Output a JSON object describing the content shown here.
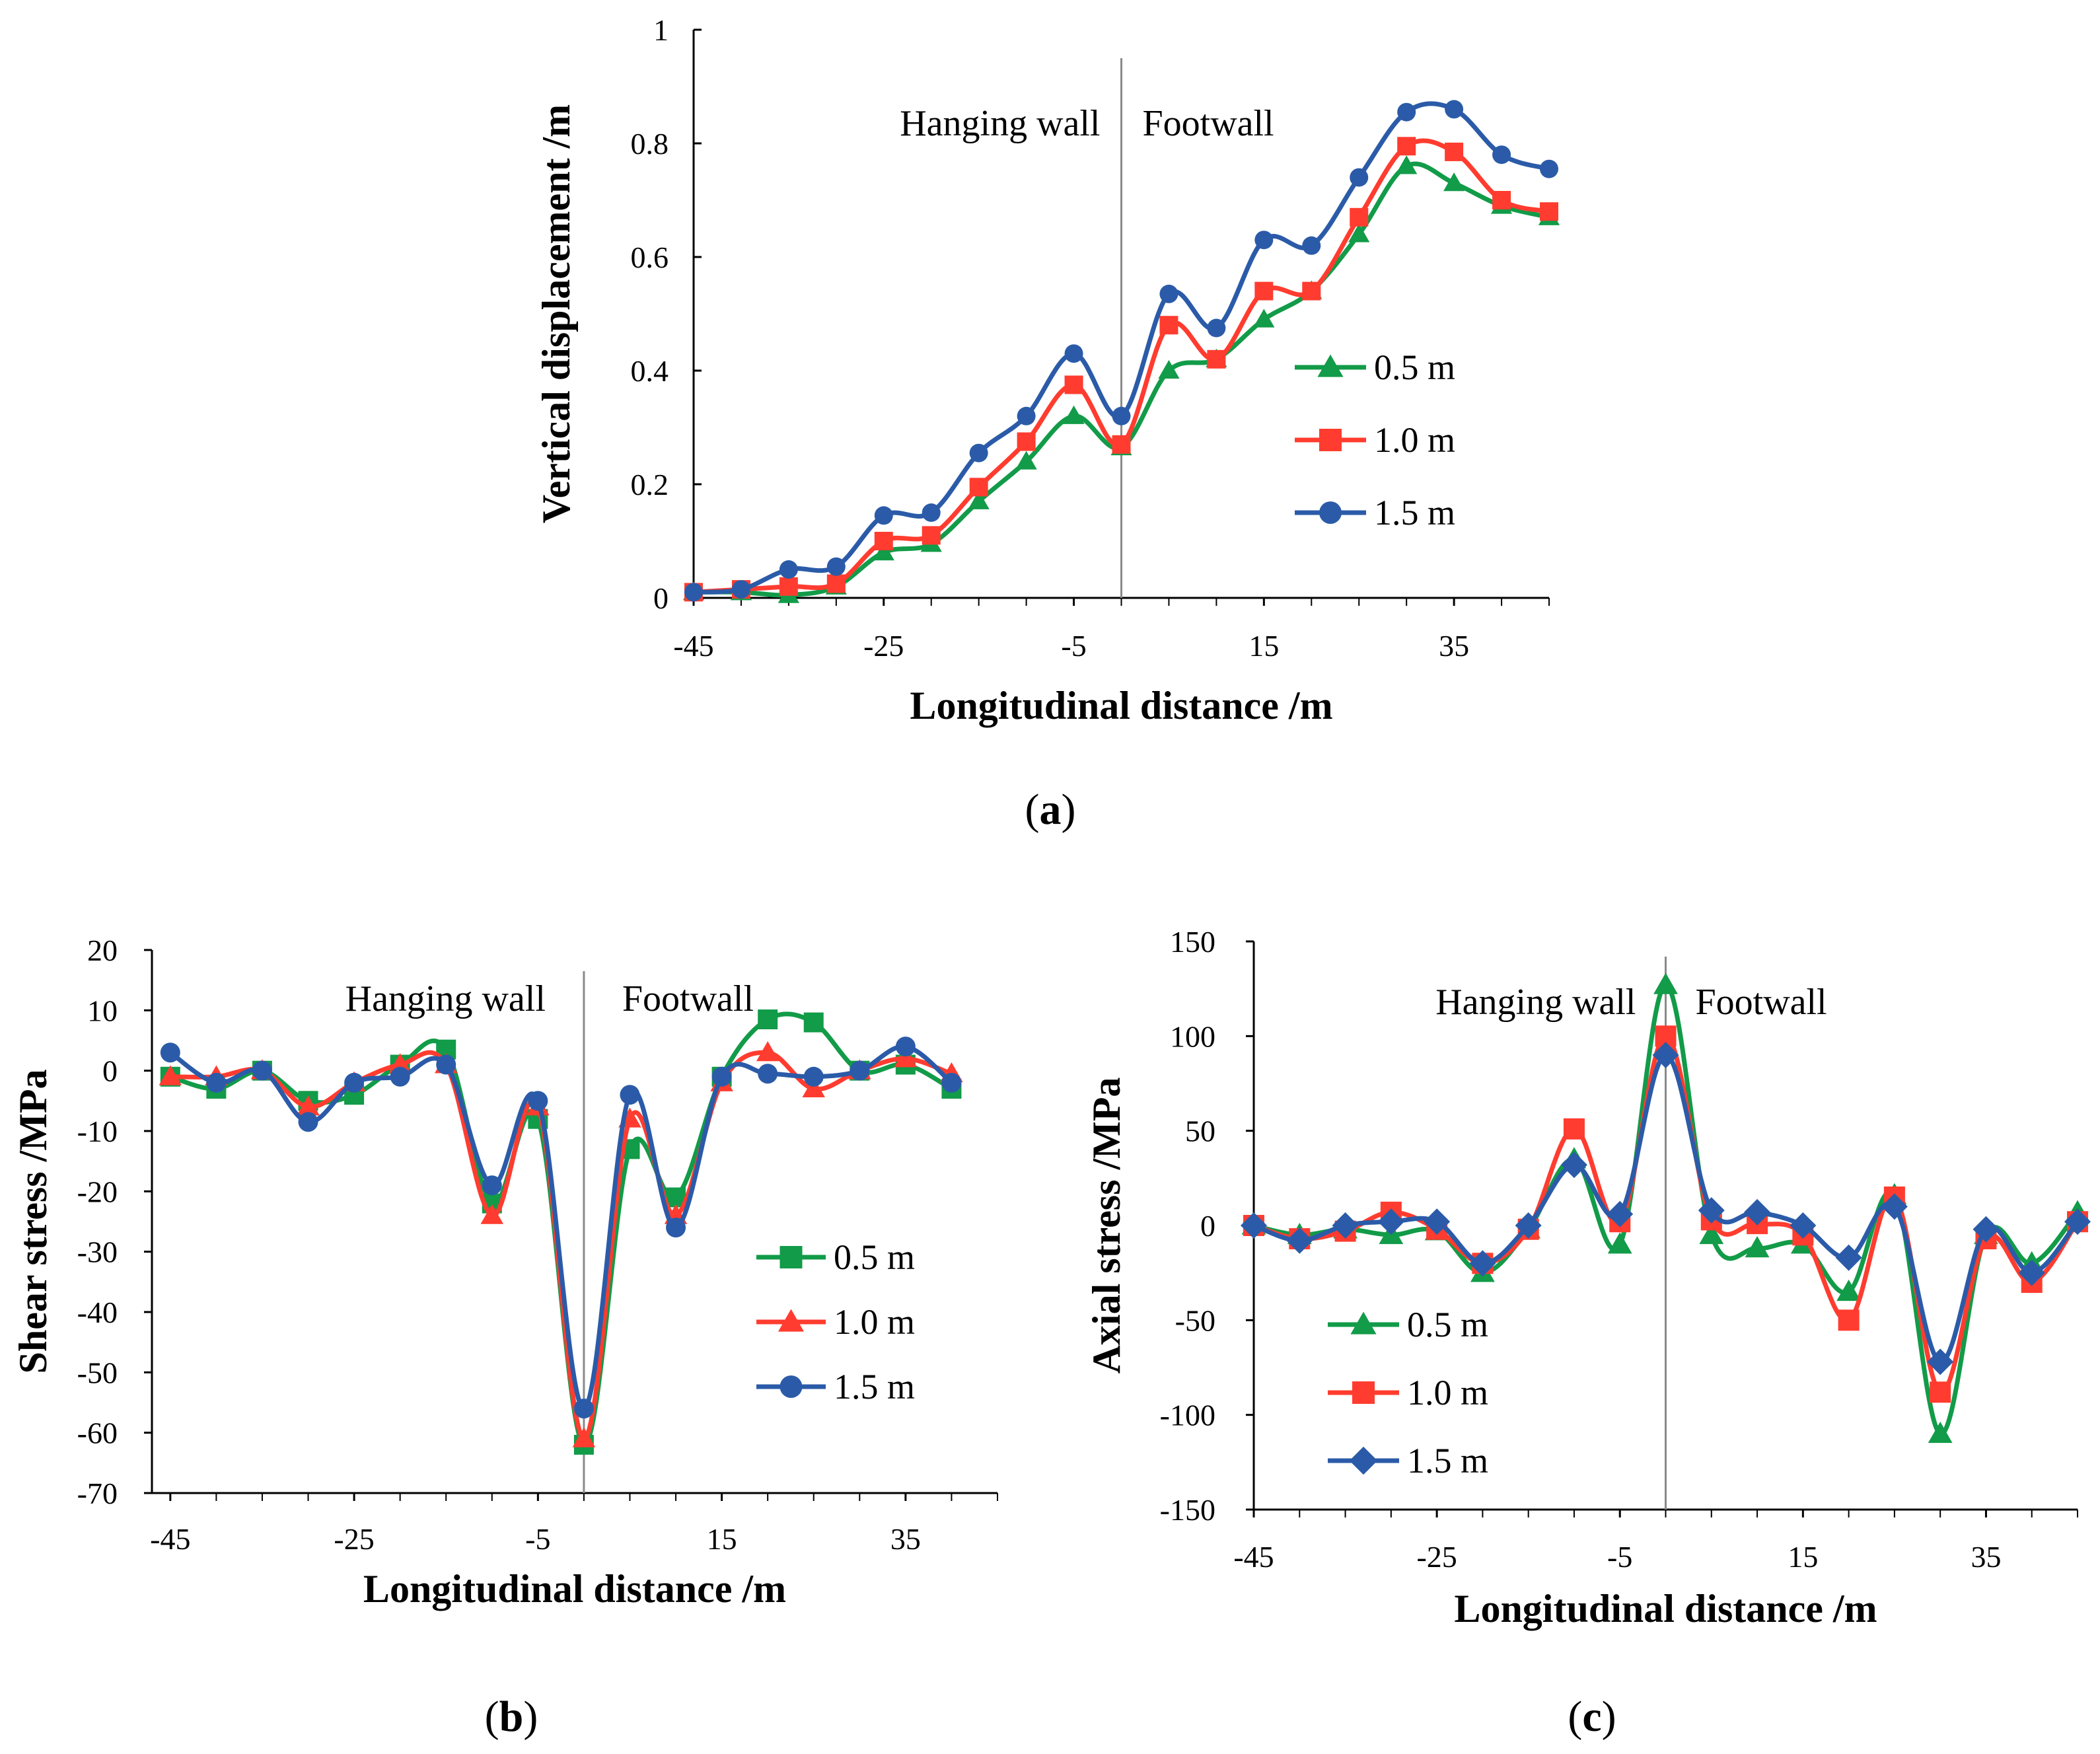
{
  "colors": {
    "green": "#129b48",
    "red": "#ff3c2f",
    "blue": "#2b5ba8",
    "divider": "#8a8a8a"
  },
  "panels": {
    "a": {
      "caption_open": "(",
      "caption_letter": "a",
      "caption_close": ")"
    },
    "b": {
      "caption_open": "(",
      "caption_letter": "b",
      "caption_close": ")"
    },
    "c": {
      "caption_open": "(",
      "caption_letter": "c",
      "caption_close": ")"
    }
  },
  "chart_data": [
    {
      "id": "a",
      "type": "line",
      "title": "",
      "xlabel": "Longitudinal distance /m",
      "ylabel": "Vertical displacement /m",
      "xlim": [
        -45,
        45
      ],
      "ylim": [
        0,
        1
      ],
      "xticks": [
        -45,
        -25,
        -5,
        15,
        35
      ],
      "xtick_labels": [
        "-45",
        "-25",
        "-5",
        "15",
        "35"
      ],
      "yticks": [
        0,
        0.2,
        0.4,
        0.6,
        0.8,
        1
      ],
      "ytick_labels": [
        "0",
        "0.2",
        "0.4",
        "0.6",
        "0.8",
        "1"
      ],
      "divider_x": 0,
      "annotations": {
        "left": "Hanging wall",
        "right": "Footwall"
      },
      "legend_position": "center-right",
      "x": [
        -45,
        -40,
        -35,
        -30,
        -25,
        -20,
        -15,
        -10,
        -5,
        0,
        5,
        10,
        15,
        20,
        25,
        30,
        35,
        40,
        45
      ],
      "series": [
        {
          "name": "0.5 m",
          "color": "#129b48",
          "marker": "triangle",
          "values": [
            0.01,
            0.01,
            0.005,
            0.02,
            0.08,
            0.095,
            0.17,
            0.24,
            0.32,
            0.265,
            0.4,
            0.42,
            0.49,
            0.54,
            0.64,
            0.76,
            0.73,
            0.69,
            0.67
          ]
        },
        {
          "name": "1.0 m",
          "color": "#ff3c2f",
          "marker": "square",
          "values": [
            0.01,
            0.015,
            0.02,
            0.025,
            0.1,
            0.11,
            0.195,
            0.275,
            0.375,
            0.27,
            0.48,
            0.42,
            0.54,
            0.54,
            0.67,
            0.795,
            0.785,
            0.7,
            0.68
          ]
        },
        {
          "name": "1.5 m",
          "color": "#2b5ba8",
          "marker": "circle",
          "values": [
            0.01,
            0.015,
            0.05,
            0.055,
            0.145,
            0.15,
            0.255,
            0.32,
            0.43,
            0.32,
            0.535,
            0.475,
            0.63,
            0.62,
            0.74,
            0.855,
            0.86,
            0.78,
            0.755
          ]
        }
      ]
    },
    {
      "id": "b",
      "type": "line",
      "title": "",
      "xlabel": "Longitudinal distance /m",
      "ylabel": "Shear stress /MPa",
      "xlim": [
        -47,
        45
      ],
      "ylim": [
        -70,
        20
      ],
      "xticks": [
        -45,
        -25,
        -5,
        15,
        35
      ],
      "xtick_labels": [
        "-45",
        "-25",
        "-5",
        "15",
        "35"
      ],
      "yticks": [
        -70,
        -60,
        -50,
        -40,
        -30,
        -20,
        -10,
        0,
        10,
        20
      ],
      "ytick_labels": [
        "-70",
        "-60",
        "-50",
        "-40",
        "-30",
        "-20",
        "-10",
        "0",
        "10",
        "20"
      ],
      "divider_x": 0,
      "annotations": {
        "left": "Hanging wall",
        "right": "Footwall"
      },
      "legend_position": "lower-right",
      "x": [
        -45,
        -40,
        -35,
        -30,
        -25,
        -20,
        -15,
        -10,
        -5,
        0,
        5,
        10,
        15,
        20,
        25,
        30,
        35,
        40,
        45
      ],
      "series": [
        {
          "name": "0.5 m",
          "color": "#129b48",
          "marker": "square",
          "values": [
            -1,
            -3,
            0,
            -5,
            -4,
            1,
            3.5,
            -22,
            -8,
            -62,
            -13,
            -21,
            -1,
            8.5,
            8,
            0,
            1,
            -3,
            null
          ]
        },
        {
          "name": "1.0 m",
          "color": "#ff3c2f",
          "marker": "triangle",
          "values": [
            -1,
            -1,
            0,
            -6,
            -2,
            1,
            1,
            -24,
            -6,
            -61,
            -8,
            -24,
            -2,
            3,
            -3,
            0,
            2,
            -0.5,
            null
          ]
        },
        {
          "name": "1.5 m",
          "color": "#2b5ba8",
          "marker": "circle",
          "values": [
            3,
            -2,
            0,
            -8.5,
            -2,
            -1,
            1,
            -19,
            -5,
            -56,
            -4,
            -26,
            -1,
            -0.5,
            -1,
            0,
            4,
            -2,
            null
          ]
        }
      ]
    },
    {
      "id": "c",
      "type": "line",
      "title": "",
      "xlabel": "Longitudinal distance /m",
      "ylabel": "Axial stress /MPa",
      "xlim": [
        -45,
        45
      ],
      "ylim": [
        -150,
        150
      ],
      "xticks": [
        -45,
        -25,
        -5,
        15,
        35
      ],
      "xtick_labels": [
        "-45",
        "-25",
        "-5",
        "15",
        "35"
      ],
      "yticks": [
        -150,
        -100,
        -50,
        0,
        50,
        100,
        150
      ],
      "ytick_labels": [
        "-150",
        "-100",
        "-50",
        "0",
        "50",
        "100",
        "150"
      ],
      "divider_x": 0,
      "annotations": {
        "left": "Hanging wall",
        "right": "Footwall"
      },
      "legend_position": "lower-left",
      "x": [
        -45,
        -40,
        -35,
        -30,
        -25,
        -20,
        -15,
        -10,
        -5,
        0,
        5,
        10,
        15,
        20,
        25,
        30,
        35,
        40,
        45
      ],
      "series": [
        {
          "name": "0.5 m",
          "color": "#129b48",
          "marker": "triangle",
          "values": [
            0,
            -5,
            -2,
            -5,
            -3,
            -25,
            -2,
            35,
            -10,
            127,
            -5,
            -12,
            -10,
            -35,
            16,
            -110,
            -5,
            -20,
            7
          ]
        },
        {
          "name": "1.0 m",
          "color": "#ff3c2f",
          "marker": "square",
          "values": [
            0,
            -7,
            -3,
            7,
            -2,
            -20,
            -2,
            51,
            2,
            100,
            3,
            1,
            -5,
            -50,
            15,
            -88,
            -7,
            -30,
            2
          ]
        },
        {
          "name": "1.5 m",
          "color": "#2b5ba8",
          "marker": "diamond",
          "values": [
            0,
            -8,
            0,
            2,
            2,
            -20,
            0,
            32,
            6,
            90,
            8,
            7,
            0,
            -17,
            10,
            -72,
            -2,
            -25,
            2
          ]
        }
      ]
    }
  ]
}
